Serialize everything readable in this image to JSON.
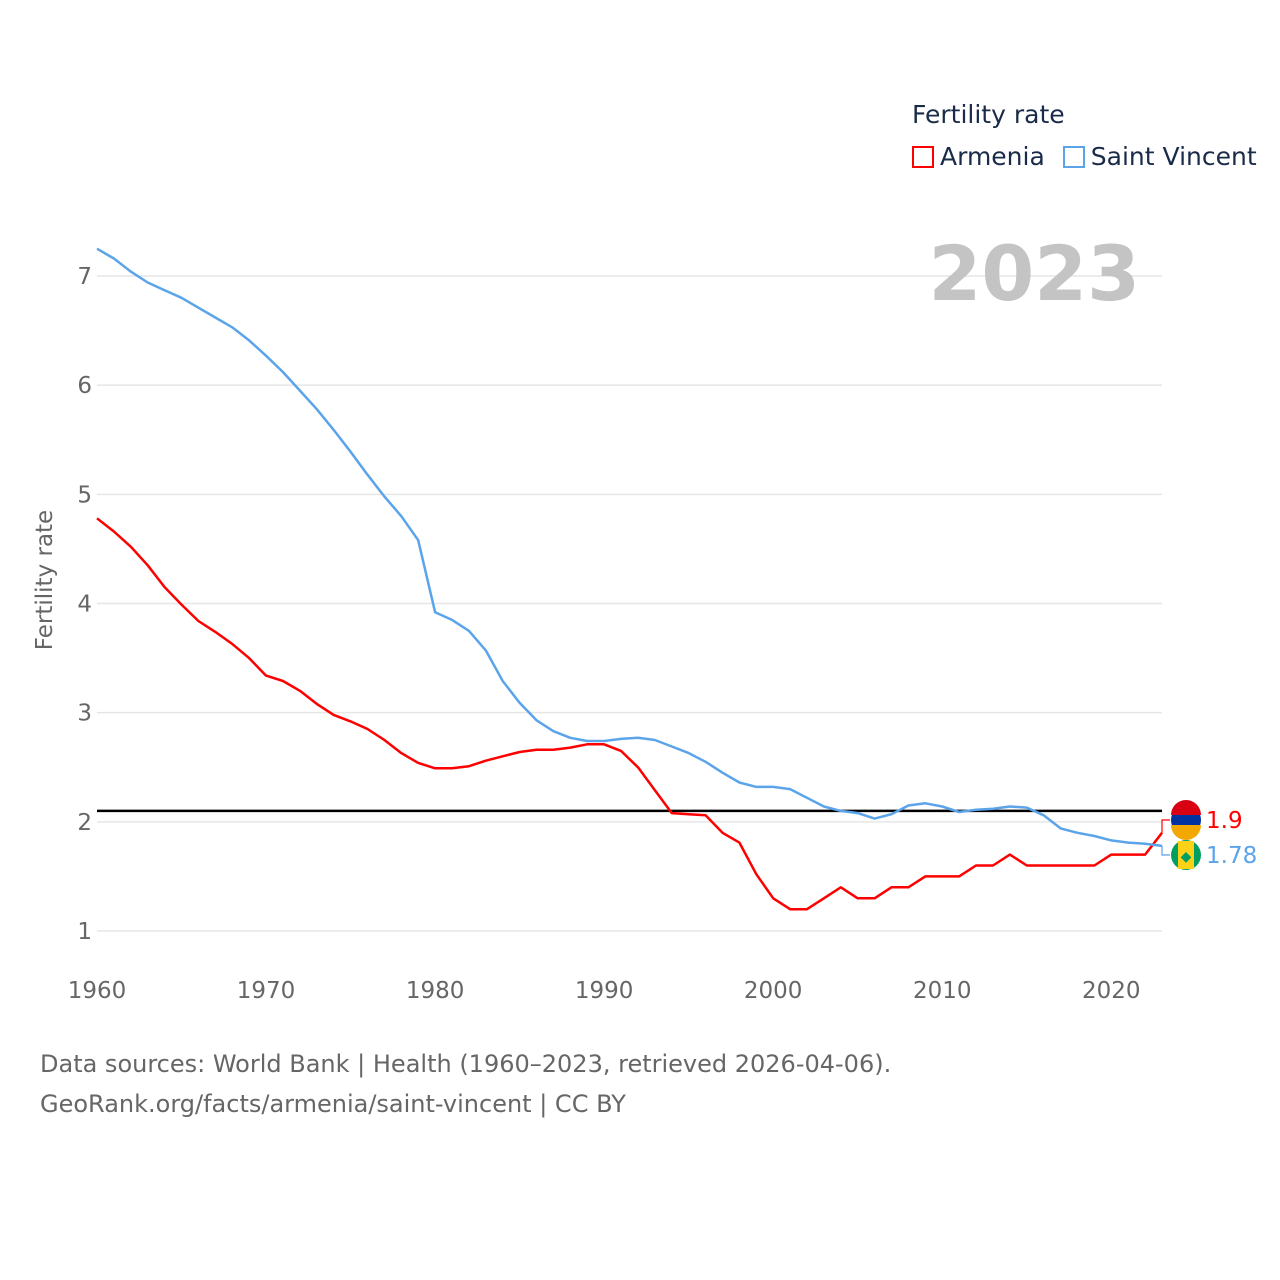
{
  "chart_data": {
    "type": "line",
    "title": "Fertility rate",
    "ylabel": "Fertility rate",
    "xlabel": "",
    "xlim": [
      1960,
      2023
    ],
    "ylim": [
      0.6,
      7.4
    ],
    "x_ticks": [
      1960,
      1970,
      1980,
      1990,
      2000,
      2010,
      2020
    ],
    "y_ticks": [
      1,
      2,
      3,
      4,
      5,
      6,
      7
    ],
    "grid": true,
    "legend_placement": "top-right",
    "year_label": "2023",
    "reference_line": 2.1,
    "x": [
      1960,
      1961,
      1962,
      1963,
      1964,
      1965,
      1966,
      1967,
      1968,
      1969,
      1970,
      1971,
      1972,
      1973,
      1974,
      1975,
      1976,
      1977,
      1978,
      1979,
      1980,
      1981,
      1982,
      1983,
      1984,
      1985,
      1986,
      1987,
      1988,
      1989,
      1990,
      1991,
      1992,
      1993,
      1994,
      1995,
      1996,
      1997,
      1998,
      1999,
      2000,
      2001,
      2002,
      2003,
      2004,
      2005,
      2006,
      2007,
      2008,
      2009,
      2010,
      2011,
      2012,
      2013,
      2014,
      2015,
      2016,
      2017,
      2018,
      2019,
      2020,
      2021,
      2022,
      2023
    ],
    "series": [
      {
        "name": "Armenia",
        "color": "#ff0000",
        "end_label": "1.9",
        "values": [
          4.78,
          4.66,
          4.52,
          4.35,
          4.15,
          3.99,
          3.84,
          3.74,
          3.63,
          3.5,
          3.34,
          3.29,
          3.2,
          3.08,
          2.98,
          2.92,
          2.85,
          2.75,
          2.63,
          2.54,
          2.49,
          2.49,
          2.51,
          2.56,
          2.6,
          2.64,
          2.66,
          2.66,
          2.68,
          2.71,
          2.71,
          2.65,
          2.5,
          2.29,
          2.08,
          2.07,
          2.06,
          1.9,
          1.81,
          1.52,
          1.3,
          1.2,
          1.2,
          1.3,
          1.4,
          1.3,
          1.3,
          1.4,
          1.4,
          1.5,
          1.5,
          1.5,
          1.6,
          1.6,
          1.7,
          1.6,
          1.6,
          1.6,
          1.6,
          1.6,
          1.7,
          1.7,
          1.7,
          1.9
        ]
      },
      {
        "name": "Saint Vincent",
        "color": "#5ba4ea",
        "end_label": "1.78",
        "values": [
          7.25,
          7.16,
          7.04,
          6.94,
          6.87,
          6.8,
          6.71,
          6.62,
          6.53,
          6.41,
          6.27,
          6.12,
          5.95,
          5.78,
          5.59,
          5.39,
          5.18,
          4.98,
          4.8,
          4.58,
          3.92,
          3.85,
          3.75,
          3.57,
          3.29,
          3.09,
          2.93,
          2.83,
          2.77,
          2.74,
          2.74,
          2.76,
          2.77,
          2.75,
          2.69,
          2.63,
          2.55,
          2.45,
          2.36,
          2.32,
          2.32,
          2.3,
          2.22,
          2.14,
          2.1,
          2.08,
          2.03,
          2.07,
          2.15,
          2.17,
          2.14,
          2.09,
          2.11,
          2.12,
          2.14,
          2.13,
          2.06,
          1.94,
          1.9,
          1.87,
          1.83,
          1.81,
          1.8,
          1.78
        ]
      }
    ]
  },
  "footer": {
    "line1": "Data sources: World Bank | Health (1960–2023, retrieved 2026-04-06).",
    "line2": "GeoRank.org/facts/armenia/saint-vincent | CC BY"
  }
}
